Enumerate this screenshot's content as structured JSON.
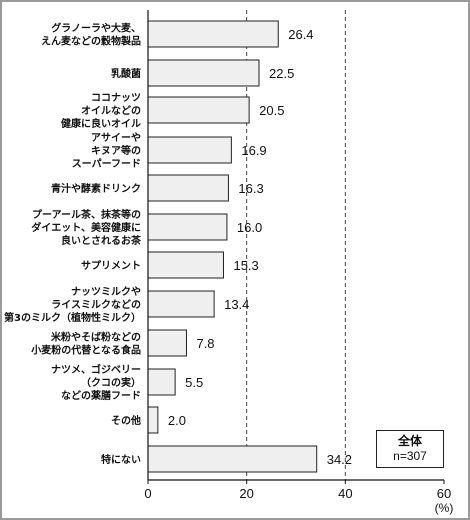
{
  "chart_data": {
    "type": "bar",
    "orientation": "horizontal",
    "categories": [
      [
        "グラノーラや大麦、",
        "えん麦などの穀物製品"
      ],
      [
        "乳酸菌"
      ],
      [
        "ココナッツ",
        "オイルなどの",
        "健康に良いオイル"
      ],
      [
        "アサイーや",
        "キヌア等の",
        "スーパーフード"
      ],
      [
        "青汁や酵素ドリンク"
      ],
      [
        "プーアール茶、抹茶等の",
        "ダイエット、美容健康に",
        "良いとされるお茶"
      ],
      [
        "サプリメント"
      ],
      [
        "ナッツミルクや",
        "ライスミルクなどの",
        "第3のミルク（植物性ミルク）"
      ],
      [
        "米粉やそば粉などの",
        "小麦粉の代替となる食品"
      ],
      [
        "ナツメ、ゴジベリー",
        "（クコの実）",
        "などの薬膳フード"
      ],
      [
        "その他"
      ],
      [
        "特にない"
      ]
    ],
    "values": [
      26.4,
      22.5,
      20.5,
      16.9,
      16.3,
      16.0,
      15.3,
      13.4,
      7.8,
      5.5,
      2.0,
      34.2
    ],
    "value_labels": [
      "26.4",
      "22.5",
      "20.5",
      "16.9",
      "16.3",
      "16.0",
      "15.3",
      "13.4",
      "7.8",
      "5.5",
      "2.0",
      "34.2"
    ],
    "xlim": [
      0,
      60
    ],
    "xticks": [
      0,
      20,
      40,
      60
    ],
    "xtick_labels": [
      "0",
      "20",
      "40",
      "60"
    ],
    "x_unit": "(%)",
    "gridlines_dashed_at": [
      20,
      40
    ],
    "bar_fill": "#efefef",
    "bar_stroke": "#222222",
    "legend": {
      "title": "全体",
      "n": "n=307",
      "placement": "bottom-right"
    }
  }
}
